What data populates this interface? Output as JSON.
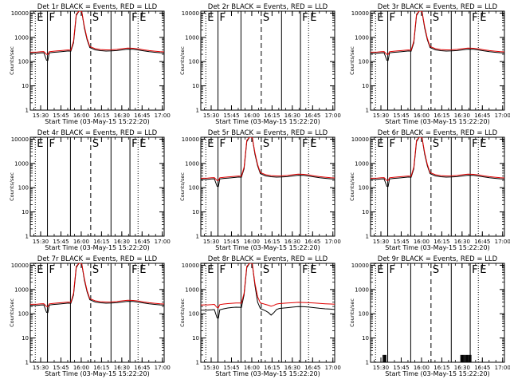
{
  "panels": [
    {
      "title": "Det 1r BLACK = Events, RED = LLD",
      "mode": "counts",
      "kind": "normal"
    },
    {
      "title": "Det 2r BLACK = Events, RED = LLD",
      "mode": "empty",
      "kind": "none"
    },
    {
      "title": "Det 3r BLACK = Events, RED = LLD",
      "mode": "counts",
      "kind": "normal"
    },
    {
      "title": "Det 4r BLACK = Events, RED = LLD",
      "mode": "empty",
      "kind": "none"
    },
    {
      "title": "Det 5r BLACK = Events, RED = LLD",
      "mode": "counts",
      "kind": "normal"
    },
    {
      "title": "Det 6r BLACK = Events, RED = LLD",
      "mode": "counts",
      "kind": "normal"
    },
    {
      "title": "Det 7r BLACK = Events, RED = LLD",
      "mode": "counts",
      "kind": "normal"
    },
    {
      "title": "Det 8r BLACK = Events, RED = LLD",
      "mode": "counts",
      "kind": "det8"
    },
    {
      "title": "Det 9r BLACK = Events, RED = LLD",
      "mode": "empty",
      "kind": "sparse"
    }
  ],
  "common": {
    "xlabel": "Start Time (03-May-15 15:22:20)",
    "ylabel": "Counts/sec",
    "xticks": [
      "15:30",
      "15:45",
      "16:00",
      "16:15",
      "16:30",
      "16:45",
      "17:00"
    ],
    "yticks": [
      "1",
      "10",
      "100",
      "1000",
      "10000"
    ],
    "event_letters": [
      "E",
      "F",
      "S",
      "F",
      "E"
    ]
  },
  "chart_data": {
    "type": "line",
    "x_unit": "minutes after 15:22:20",
    "xlim": [
      0,
      99
    ],
    "ylim": [
      1,
      12000
    ],
    "y_scale": "log",
    "title": "",
    "xlabel": "Start Time (03-May-15 15:22:20)",
    "ylabel": "Counts/sec",
    "markers": [
      {
        "label": "E",
        "style": "dotted",
        "x": 3.7
      },
      {
        "label": "F",
        "style": "solid",
        "x": 12.7
      },
      {
        "label": "",
        "style": "solid",
        "x": 29.7
      },
      {
        "label": "S",
        "style": "dashed",
        "x": 44.7
      },
      {
        "label": "",
        "style": "solid",
        "x": 59.7
      },
      {
        "label": "F",
        "style": "solid",
        "x": 73.7
      },
      {
        "label": "E",
        "style": "dotted",
        "x": 79.7
      }
    ],
    "series_normal": {
      "events": [
        [
          0,
          220
        ],
        [
          5,
          222
        ],
        [
          8,
          228
        ],
        [
          10,
          232
        ],
        [
          12,
          115
        ],
        [
          13,
          112
        ],
        [
          14,
          228
        ],
        [
          17,
          240
        ],
        [
          20,
          248
        ],
        [
          23,
          258
        ],
        [
          26,
          268
        ],
        [
          28,
          274
        ],
        [
          29,
          272
        ],
        [
          30,
          268
        ],
        [
          32,
          600
        ],
        [
          34,
          8000
        ],
        [
          36,
          12000
        ],
        [
          38,
          12000
        ],
        [
          40,
          2400
        ],
        [
          42,
          800
        ],
        [
          44,
          380
        ],
        [
          48,
          305
        ],
        [
          52,
          282
        ],
        [
          56,
          272
        ],
        [
          60,
          275
        ],
        [
          64,
          285
        ],
        [
          68,
          305
        ],
        [
          72,
          325
        ],
        [
          76,
          320
        ],
        [
          80,
          300
        ],
        [
          84,
          275
        ],
        [
          88,
          255
        ],
        [
          92,
          242
        ],
        [
          96,
          232
        ],
        [
          99,
          226
        ]
      ],
      "lld": [
        [
          0,
          245
        ],
        [
          5,
          248
        ],
        [
          8,
          255
        ],
        [
          10,
          260
        ],
        [
          12,
          200
        ],
        [
          13,
          198
        ],
        [
          14,
          255
        ],
        [
          17,
          268
        ],
        [
          20,
          275
        ],
        [
          23,
          285
        ],
        [
          26,
          295
        ],
        [
          28,
          302
        ],
        [
          29,
          300
        ],
        [
          30,
          296
        ],
        [
          32,
          700
        ],
        [
          34,
          9000
        ],
        [
          36,
          12000
        ],
        [
          38,
          12000
        ],
        [
          40,
          2800
        ],
        [
          42,
          900
        ],
        [
          44,
          420
        ],
        [
          48,
          340
        ],
        [
          52,
          315
        ],
        [
          56,
          305
        ],
        [
          60,
          308
        ],
        [
          64,
          318
        ],
        [
          68,
          340
        ],
        [
          72,
          362
        ],
        [
          76,
          355
        ],
        [
          80,
          335
        ],
        [
          84,
          305
        ],
        [
          88,
          285
        ],
        [
          92,
          270
        ],
        [
          96,
          258
        ],
        [
          99,
          252
        ]
      ]
    },
    "series_det8": {
      "events": [
        [
          0,
          140
        ],
        [
          5,
          142
        ],
        [
          8,
          145
        ],
        [
          10,
          148
        ],
        [
          12,
          68
        ],
        [
          13,
          66
        ],
        [
          14,
          145
        ],
        [
          17,
          160
        ],
        [
          20,
          172
        ],
        [
          23,
          180
        ],
        [
          26,
          186
        ],
        [
          29,
          185
        ],
        [
          30,
          180
        ],
        [
          32,
          600
        ],
        [
          34,
          8000
        ],
        [
          36,
          12000
        ],
        [
          38,
          12000
        ],
        [
          40,
          1500
        ],
        [
          42,
          300
        ],
        [
          44,
          165
        ],
        [
          48,
          130
        ],
        [
          50,
          112
        ],
        [
          52,
          88
        ],
        [
          54,
          110
        ],
        [
          56,
          150
        ],
        [
          58,
          165
        ],
        [
          60,
          170
        ],
        [
          64,
          178
        ],
        [
          68,
          188
        ],
        [
          72,
          198
        ],
        [
          76,
          195
        ],
        [
          80,
          188
        ],
        [
          84,
          178
        ],
        [
          88,
          168
        ],
        [
          92,
          160
        ],
        [
          96,
          155
        ],
        [
          99,
          150
        ]
      ],
      "lld": [
        [
          0,
          230
        ],
        [
          5,
          232
        ],
        [
          8,
          238
        ],
        [
          10,
          242
        ],
        [
          12,
          180
        ],
        [
          13,
          178
        ],
        [
          14,
          238
        ],
        [
          17,
          252
        ],
        [
          20,
          262
        ],
        [
          23,
          270
        ],
        [
          26,
          276
        ],
        [
          29,
          275
        ],
        [
          30,
          270
        ],
        [
          32,
          700
        ],
        [
          34,
          9000
        ],
        [
          36,
          12000
        ],
        [
          38,
          12000
        ],
        [
          40,
          1800
        ],
        [
          42,
          500
        ],
        [
          44,
          280
        ],
        [
          48,
          240
        ],
        [
          50,
          225
        ],
        [
          52,
          205
        ],
        [
          54,
          222
        ],
        [
          56,
          250
        ],
        [
          58,
          262
        ],
        [
          60,
          268
        ],
        [
          64,
          275
        ],
        [
          68,
          285
        ],
        [
          72,
          295
        ],
        [
          76,
          292
        ],
        [
          80,
          285
        ],
        [
          84,
          275
        ],
        [
          88,
          265
        ],
        [
          92,
          258
        ],
        [
          96,
          252
        ],
        [
          99,
          248
        ]
      ]
    },
    "series_sparse": {
      "events_spikes": [
        [
          9.2,
          2
        ],
        [
          9.8,
          2
        ],
        [
          10.3,
          2
        ],
        [
          10.9,
          2
        ],
        [
          11.4,
          2
        ],
        [
          66.7,
          2
        ],
        [
          67.2,
          2
        ],
        [
          67.8,
          2
        ],
        [
          68.3,
          2
        ],
        [
          68.8,
          2
        ],
        [
          69.4,
          2
        ],
        [
          69.9,
          2
        ],
        [
          70.5,
          2
        ],
        [
          71.0,
          2
        ],
        [
          71.6,
          2
        ],
        [
          72.1,
          2
        ],
        [
          72.7,
          2
        ],
        [
          73.2,
          2
        ],
        [
          73.8,
          2
        ],
        [
          74.3,
          2
        ]
      ]
    }
  }
}
